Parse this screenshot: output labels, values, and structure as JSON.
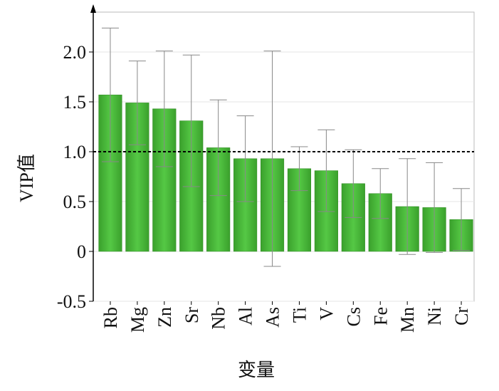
{
  "chart_data": {
    "type": "bar",
    "x_label": "变量",
    "y_label": "VIP值",
    "categories": [
      "Rb",
      "Mg",
      "Zn",
      "Sr",
      "Nb",
      "Al",
      "As",
      "Ti",
      "V",
      "Cs",
      "Fe",
      "Mn",
      "Ni",
      "Cr"
    ],
    "values": [
      1.57,
      1.49,
      1.43,
      1.31,
      1.04,
      0.93,
      0.93,
      0.83,
      0.81,
      0.68,
      0.58,
      0.45,
      0.44,
      0.32
    ],
    "errors": [
      0.67,
      0.42,
      0.58,
      0.66,
      0.48,
      0.43,
      1.08,
      0.22,
      0.41,
      0.34,
      0.25,
      0.48,
      0.45,
      0.31
    ],
    "color": "#4cbb3c",
    "reference_line": 1,
    "ylim": [
      -0.5,
      2.4
    ],
    "yticks": [
      {
        "value": 2,
        "label": "2.0"
      },
      1.5,
      {
        "value": 1,
        "label": "1.0"
      },
      0.5,
      0,
      -0.5
    ],
    "grid": true
  }
}
